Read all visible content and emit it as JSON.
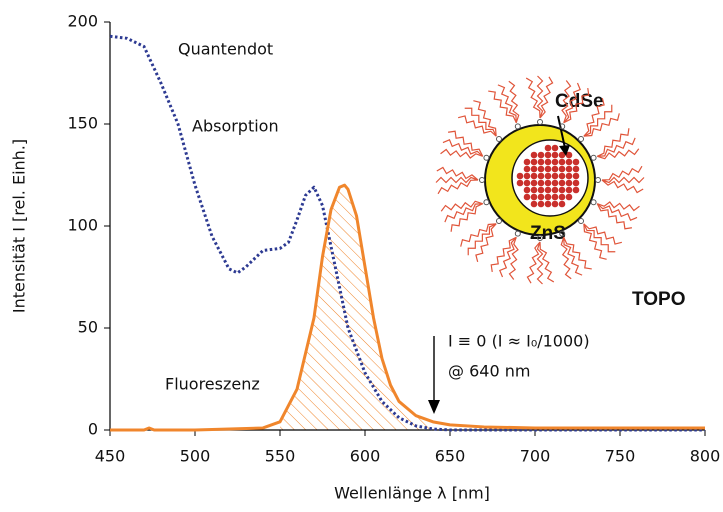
{
  "chart_data": {
    "type": "line",
    "x_label": "Wellenlänge λ [nm]",
    "y_label": "Intensität I [rel. Einh.]",
    "xlim": [
      450,
      800
    ],
    "xticks": [
      450,
      500,
      550,
      600,
      650,
      700,
      750,
      800
    ],
    "ylim": [
      0,
      200
    ],
    "yticks": [
      0,
      50,
      100,
      150,
      200
    ],
    "grid": false,
    "series": [
      {
        "name": "Absorption",
        "color": "#2d3a92",
        "style": "dotted",
        "x": [
          450,
          460,
          470,
          480,
          490,
          500,
          510,
          520,
          525,
          530,
          540,
          550,
          555,
          560,
          565,
          570,
          575,
          580,
          585,
          590,
          600,
          610,
          620,
          630,
          640,
          650,
          700,
          800
        ],
        "values": [
          193,
          192,
          188,
          170,
          150,
          120,
          95,
          79,
          77,
          80,
          88,
          89,
          92,
          103,
          115,
          119,
          110,
          90,
          70,
          50,
          28,
          14,
          6,
          2,
          0.5,
          0,
          0,
          0
        ]
      },
      {
        "name": "Fluoreszenz",
        "color": "#f0862c",
        "style": "solid",
        "x": [
          450,
          470,
          473,
          476,
          500,
          540,
          550,
          560,
          570,
          575,
          580,
          585,
          588,
          590,
          595,
          600,
          605,
          610,
          615,
          620,
          630,
          640,
          650,
          670,
          700,
          800
        ],
        "values": [
          0,
          0,
          1,
          0,
          0,
          1,
          4,
          20,
          55,
          85,
          108,
          119,
          120,
          118,
          105,
          80,
          55,
          35,
          22,
          14,
          7,
          4,
          2.5,
          1.5,
          1,
          1
        ]
      }
    ],
    "annotations": [
      "Quantendot",
      "I ≡ 0 (I ≈ I₀/1000)",
      "@ 640 nm"
    ],
    "inset_labels": [
      "CdSe",
      "ZnS",
      "TOPO"
    ]
  }
}
